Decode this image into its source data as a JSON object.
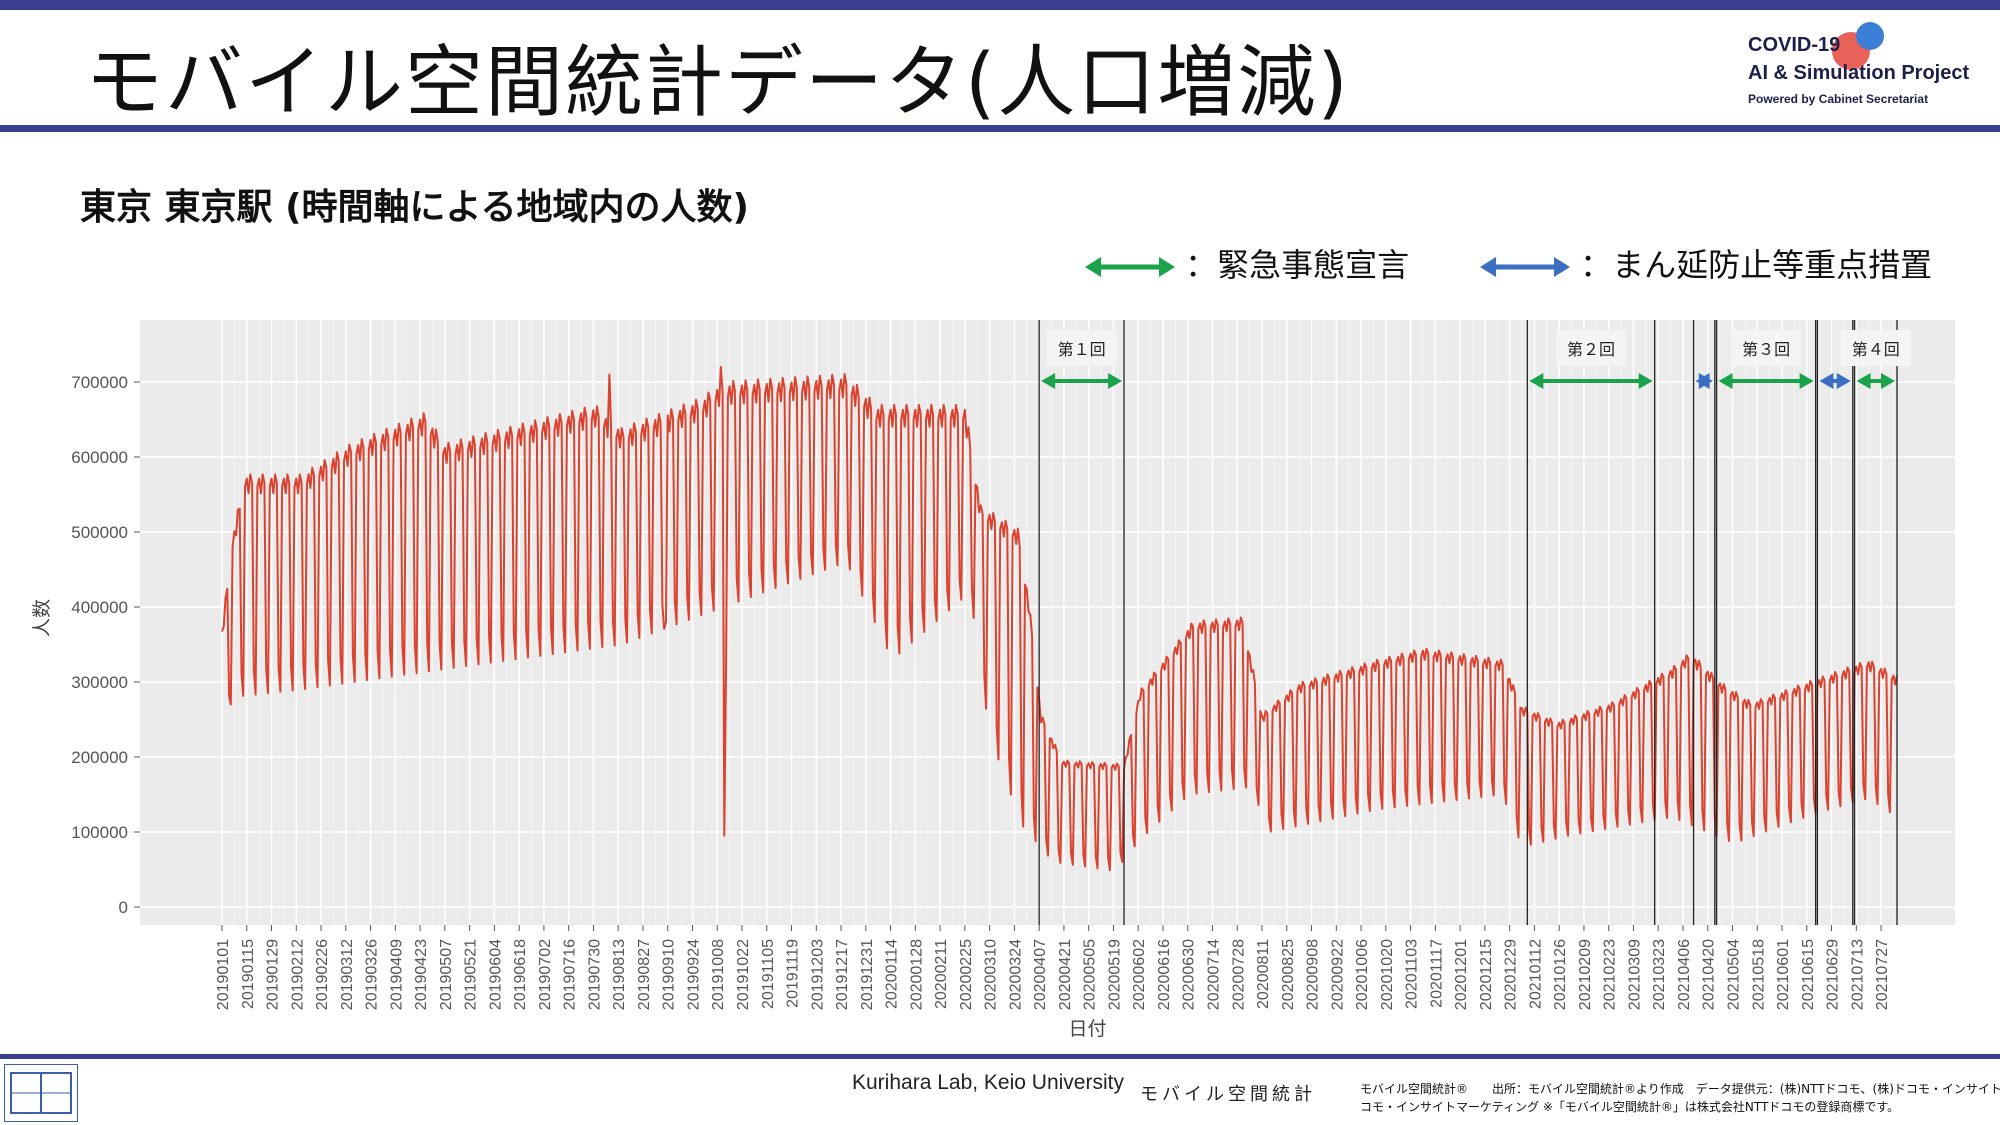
{
  "slide": {
    "title": "モバイル空間統計データ(人口増減)",
    "subtitle": "東京 東京駅 (時間軸による地域内の人数)"
  },
  "logo": {
    "line1": "COVID-19",
    "line2": "AI & Simulation Project",
    "line3": "Powered by Cabinet Secretariat"
  },
  "legend": {
    "emergency_label": "：緊急事態宣言",
    "priority_label": "：まん延防止等重点措置",
    "emergency_color": "#1aa34a",
    "priority_color": "#3a6fc1"
  },
  "footer": {
    "credit": "Kurihara Lab, Keio University",
    "brand": "モバイル空間統計",
    "source_line1": "モバイル空間統計®　　出所：モバイル空間統計®より作成　データ提供元：(株)NTTドコモ、(株)ドコモ・インサイトマーケティング",
    "source_line2": "コモ・インサイトマーケティング ※「モバイル空間統計®」は株式会社NTTドコモの登録商標です。"
  },
  "chart_data": {
    "type": "line",
    "xlabel": "日付",
    "ylabel": "人数",
    "ylim": [
      0,
      730000
    ],
    "yticks": [
      0,
      100000,
      200000,
      300000,
      400000,
      500000,
      600000,
      700000
    ],
    "ytick_labels": [
      "0",
      "100000",
      "200000",
      "300000",
      "400000",
      "500000",
      "600000",
      "700000"
    ],
    "grid": true,
    "line_color": "#d9432f",
    "x_start": "2019-01-01",
    "x_end": "2021-08-05",
    "xtick_labels": [
      "20190101",
      "20190115",
      "20190129",
      "20190212",
      "20190226",
      "20190312",
      "20190326",
      "20190409",
      "20190423",
      "20190507",
      "20190521",
      "20190604",
      "20190618",
      "20190702",
      "20190716",
      "20190730",
      "20190813",
      "20190827",
      "20190910",
      "20190924",
      "20191008",
      "20191022",
      "20191105",
      "20191119",
      "20191203",
      "20191217",
      "20191231",
      "20200114",
      "20200128",
      "20200211",
      "20200225",
      "20200310",
      "20200324",
      "20200407",
      "20200421",
      "20200505",
      "20200519",
      "20200602",
      "20200616",
      "20200630",
      "20200714",
      "20200728",
      "20200811",
      "20200825",
      "20200908",
      "20200922",
      "20201006",
      "20201020",
      "20201103",
      "20201117",
      "20201201",
      "20201215",
      "20201229",
      "20210112",
      "20210126",
      "20210209",
      "20210223",
      "20210309",
      "20210323",
      "20210406",
      "20210420",
      "20210504",
      "20210518",
      "20210601",
      "20210615",
      "20210629",
      "20210713",
      "20210727"
    ],
    "series": [
      {
        "weekday_level": [
          [
            "2019-01-01",
            360000
          ],
          [
            "2019-01-07",
            480000
          ],
          [
            "2019-01-14",
            560000
          ],
          [
            "2019-02-15",
            560000
          ],
          [
            "2019-03-15",
            600000
          ],
          [
            "2019-04-26",
            640000
          ],
          [
            "2019-05-07",
            600000
          ],
          [
            "2019-07-31",
            650000
          ],
          [
            "2019-08-15",
            620000
          ],
          [
            "2019-09-30",
            660000
          ],
          [
            "2019-10-10",
            680000
          ],
          [
            "2019-12-20",
            690000
          ],
          [
            "2020-01-06",
            650000
          ],
          [
            "2020-02-25",
            650000
          ],
          [
            "2020-03-05",
            520000
          ],
          [
            "2020-03-26",
            490000
          ],
          [
            "2020-04-01",
            400000
          ],
          [
            "2020-04-08",
            250000
          ],
          [
            "2020-04-20",
            190000
          ],
          [
            "2020-05-25",
            185000
          ],
          [
            "2020-06-03",
            280000
          ],
          [
            "2020-06-20",
            330000
          ],
          [
            "2020-07-03",
            370000
          ],
          [
            "2020-07-31",
            375000
          ],
          [
            "2020-08-11",
            250000
          ],
          [
            "2020-09-01",
            290000
          ],
          [
            "2020-10-15",
            320000
          ],
          [
            "2020-11-10",
            335000
          ],
          [
            "2020-12-25",
            320000
          ],
          [
            "2021-01-05",
            260000
          ],
          [
            "2021-01-25",
            240000
          ],
          [
            "2021-02-25",
            265000
          ],
          [
            "2021-03-31",
            310000
          ],
          [
            "2021-04-10",
            330000
          ],
          [
            "2021-04-28",
            290000
          ],
          [
            "2021-05-15",
            265000
          ],
          [
            "2021-06-20",
            295000
          ],
          [
            "2021-07-20",
            320000
          ],
          [
            "2021-08-05",
            300000
          ]
        ],
        "weekend_level": [
          [
            "2019-01-01",
            220000
          ],
          [
            "2019-01-07",
            280000
          ],
          [
            "2019-02-15",
            290000
          ],
          [
            "2019-05-15",
            320000
          ],
          [
            "2019-08-15",
            350000
          ],
          [
            "2019-12-20",
            460000
          ],
          [
            "2020-01-15",
            330000
          ],
          [
            "2020-02-28",
            420000
          ],
          [
            "2020-03-10",
            230000
          ],
          [
            "2020-03-28",
            110000
          ],
          [
            "2020-04-15",
            60000
          ],
          [
            "2020-05-20",
            48000
          ],
          [
            "2020-06-03",
            90000
          ],
          [
            "2020-07-01",
            150000
          ],
          [
            "2020-08-05",
            160000
          ],
          [
            "2020-08-15",
            100000
          ],
          [
            "2020-10-15",
            130000
          ],
          [
            "2020-12-25",
            150000
          ],
          [
            "2021-01-05",
            80000
          ],
          [
            "2021-01-31",
            95000
          ],
          [
            "2021-03-31",
            120000
          ],
          [
            "2021-05-05",
            85000
          ],
          [
            "2021-06-20",
            125000
          ],
          [
            "2021-07-20",
            145000
          ],
          [
            "2021-08-05",
            120000
          ]
        ],
        "events": [
          {
            "date": "2019-09-09",
            "value": 380000
          },
          {
            "date": "2019-10-12",
            "value": 95000
          },
          {
            "date": "2019-10-13",
            "value": 330000
          },
          {
            "date": "2019-10-10",
            "value": 720000
          },
          {
            "date": "2019-08-08",
            "value": 710000
          }
        ]
      }
    ],
    "declarations": [
      {
        "label": "第１回",
        "start": "2020-04-07",
        "end": "2020-05-25",
        "kind": "emergency"
      },
      {
        "label": "第２回",
        "start": "2021-01-08",
        "end": "2021-03-21",
        "kind": "emergency"
      },
      {
        "label": "",
        "start": "2021-04-12",
        "end": "2021-04-24",
        "kind": "priority"
      },
      {
        "label": "第３回",
        "start": "2021-04-25",
        "end": "2021-06-20",
        "kind": "emergency"
      },
      {
        "label": "",
        "start": "2021-06-21",
        "end": "2021-07-11",
        "kind": "priority"
      },
      {
        "label": "第４回",
        "start": "2021-07-12",
        "end": "2021-08-05",
        "kind": "emergency"
      }
    ]
  }
}
